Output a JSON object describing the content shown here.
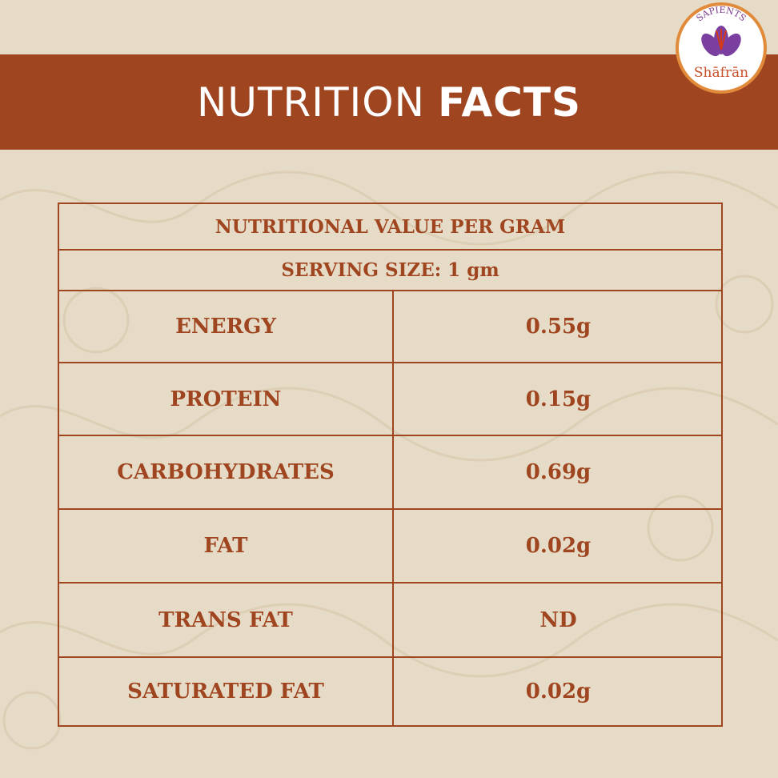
{
  "header": {
    "title_regular": "NUTRITION",
    "title_bold": "FACTS"
  },
  "logo": {
    "top": "SAPIENTS",
    "name": "Shāfrān"
  },
  "table": {
    "heading": "NUTRITIONAL VALUE PER GRAM",
    "subheading": "SERVING SIZE: 1 gm",
    "rows": [
      [
        "ENERGY",
        "0.55g"
      ],
      [
        "PROTEIN",
        "0.15g"
      ],
      [
        "CARBOHYDRATES",
        "0.69g"
      ],
      [
        "FAT",
        "0.02g"
      ],
      [
        "TRANS FAT",
        "ND"
      ],
      [
        "SATURATED FAT",
        "0.02g"
      ]
    ]
  }
}
